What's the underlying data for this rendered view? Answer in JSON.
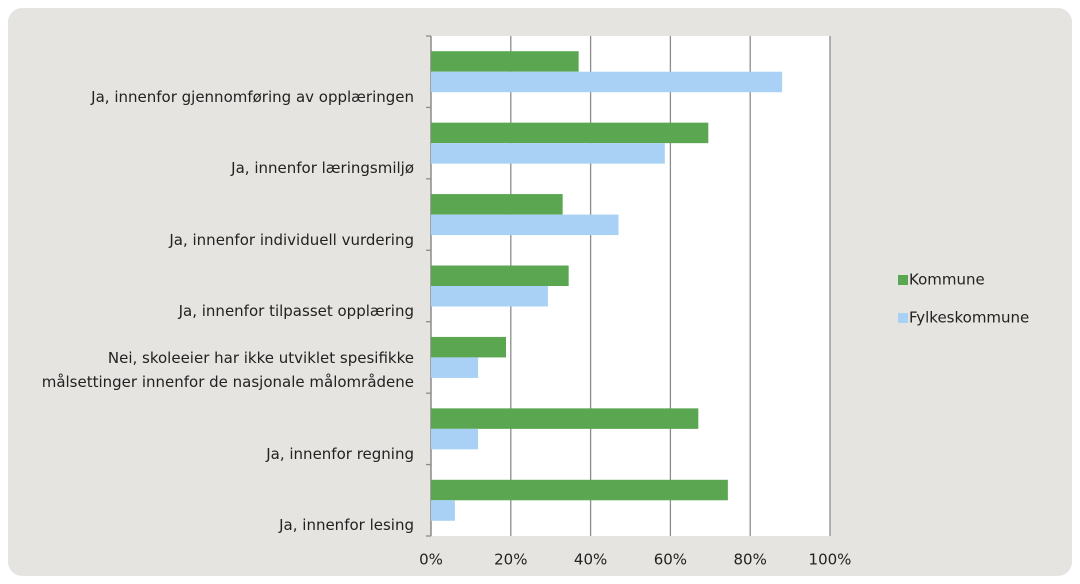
{
  "chart_data": {
    "type": "bar",
    "orientation": "horizontal",
    "categories": [
      "Ja, innenfor gjennomføring av opplæringen",
      "Ja, innenfor læringsmiljø",
      "Ja, innenfor individuell vurdering",
      "Ja, innenfor tilpasset opplæring",
      "Nei, skoleeier har ikke utviklet spesifikke målsettinger innenfor de nasjonale målområdene",
      "Ja, innenfor regning",
      "Ja, innenfor lesing"
    ],
    "series": [
      {
        "name": "Kommune",
        "color": "#5aa651",
        "values": [
          37,
          69.5,
          33,
          34.5,
          18.8,
          67,
          74.4
        ]
      },
      {
        "name": "Fylkeskommune",
        "color": "#a9d1f5",
        "values": [
          88,
          58.6,
          47,
          29.3,
          11.8,
          11.8,
          6
        ]
      }
    ],
    "xlim": [
      0,
      100
    ],
    "xticks": [
      {
        "value": 0,
        "label": "0%"
      },
      {
        "value": 20,
        "label": "20%"
      },
      {
        "value": 40,
        "label": "40%"
      },
      {
        "value": 60,
        "label": "60%"
      },
      {
        "value": 80,
        "label": "80%"
      },
      {
        "value": 100,
        "label": "100%"
      }
    ],
    "grid": true,
    "legend": "right"
  }
}
